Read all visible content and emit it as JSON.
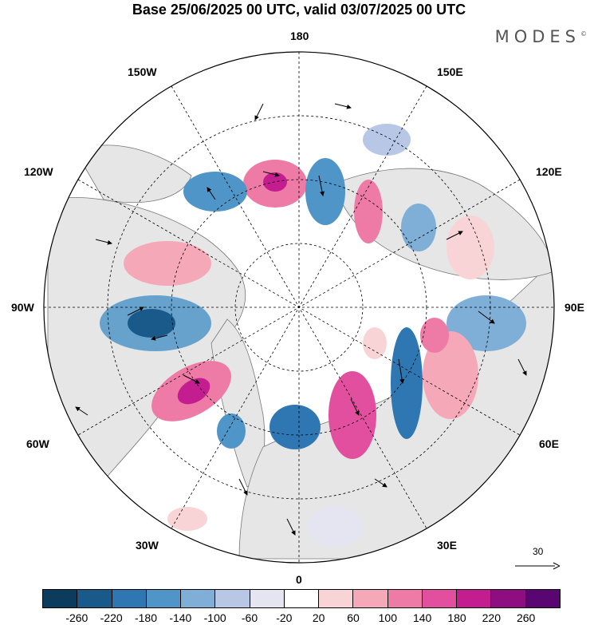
{
  "title": "Base 25/06/2025 00 UTC, valid 03/07/2025 00 UTC",
  "brand": "MODES",
  "brand_mark": "©",
  "longitude_labels": {
    "top": "180",
    "top_left": "150W",
    "top_right": "150E",
    "upper_left": "120W",
    "upper_right": "120E",
    "left": "90W",
    "right": "90E",
    "lower_left": "60W",
    "lower_right": "60E",
    "bottom_left": "30W",
    "bottom_right": "30E",
    "bottom": "0"
  },
  "reference_vector": "30",
  "colorbar": {
    "colors": [
      "#0b3c5d",
      "#1a5a8a",
      "#2f77b3",
      "#4f95c7",
      "#7faed6",
      "#b7c7e5",
      "#e5e5f2",
      "#ffffff",
      "#f9d4d6",
      "#f5a9b8",
      "#ee7ba6",
      "#e24f9e",
      "#c41d8f",
      "#8e0d80",
      "#5a0672"
    ],
    "ticks": [
      "-260",
      "-220",
      "-180",
      "-140",
      "-100",
      "-60",
      "-20",
      "20",
      "60",
      "100",
      "140",
      "180",
      "220",
      "260"
    ]
  },
  "colors": {
    "land": "#e6e6e6",
    "ocean": "#ffffff"
  }
}
